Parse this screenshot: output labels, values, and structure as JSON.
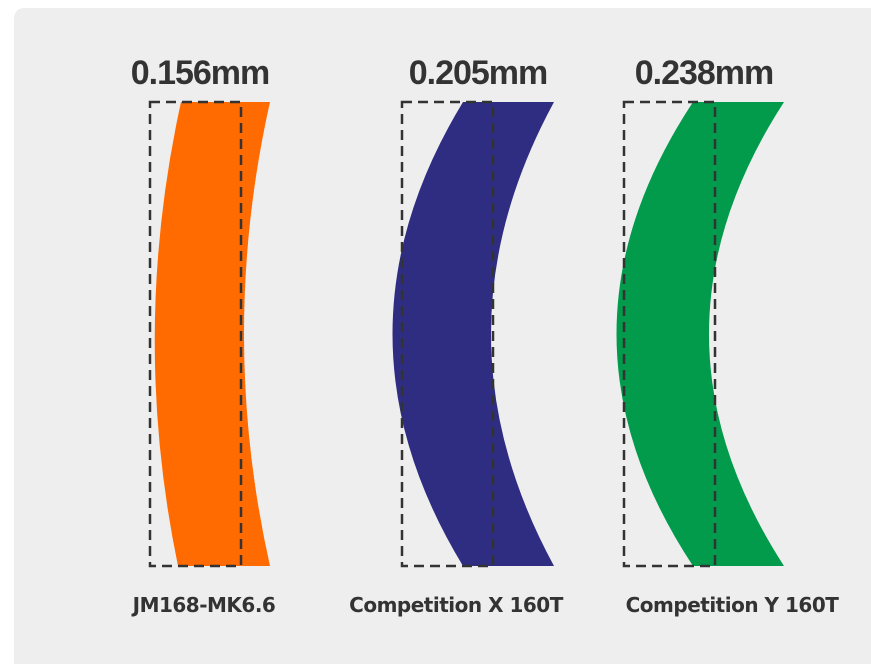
{
  "items": [
    {
      "measurement": "0.156mm",
      "name": "JM168-MK6.6",
      "color": "#ff6b00"
    },
    {
      "measurement": "0.205mm",
      "name": "Competition X 160T",
      "color": "#2e2d82"
    },
    {
      "measurement": "0.238mm",
      "name": "Competition Y 160T",
      "color": "#019b4b"
    }
  ],
  "outline_color": "#333333",
  "background_color": "#eeeeef"
}
